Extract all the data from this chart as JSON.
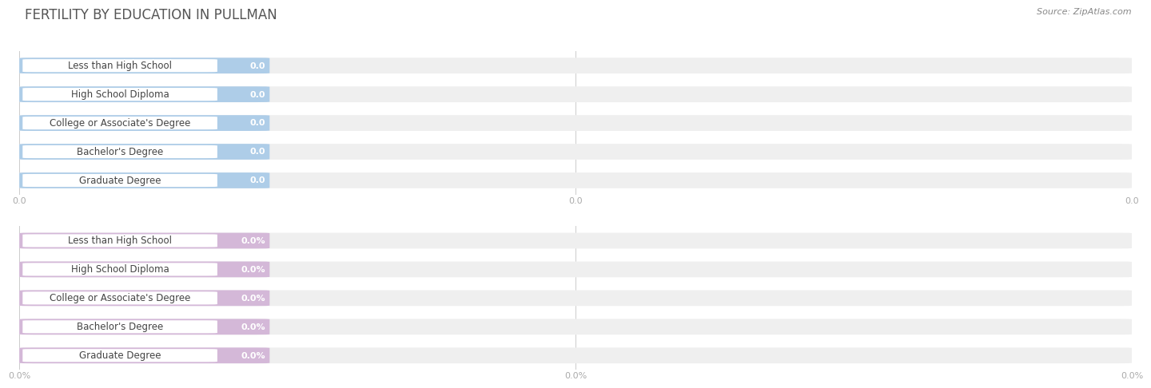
{
  "title": "FERTILITY BY EDUCATION IN PULLMAN",
  "source": "Source: ZipAtlas.com",
  "categories": [
    "Less than High School",
    "High School Diploma",
    "College or Associate's Degree",
    "Bachelor's Degree",
    "Graduate Degree"
  ],
  "top_values": [
    0.0,
    0.0,
    0.0,
    0.0,
    0.0
  ],
  "bottom_values": [
    0.0,
    0.0,
    0.0,
    0.0,
    0.0
  ],
  "top_color": "#aecde8",
  "bottom_color": "#d4b8d8",
  "bar_bg_color": "#efefef",
  "top_tick_labels": [
    "0.0",
    "0.0",
    "0.0"
  ],
  "bottom_tick_labels": [
    "0.0%",
    "0.0%",
    "0.0%"
  ],
  "background_color": "#ffffff",
  "title_color": "#555555",
  "title_fontsize": 12,
  "label_fontsize": 8.5,
  "value_fontsize": 8,
  "source_fontsize": 8,
  "x_tick_fontsize": 8,
  "tick_color": "#aaaaaa"
}
